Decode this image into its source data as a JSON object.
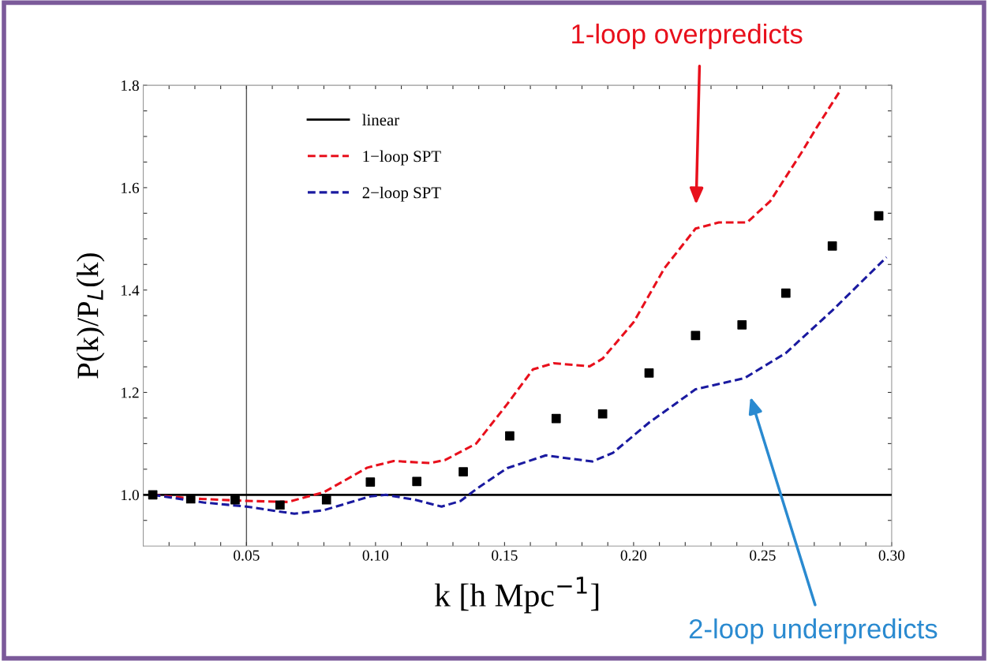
{
  "chart_data": {
    "type": "line",
    "xlabel": "k [h Mpc$^{−1}$]",
    "ylabel": "P(k)/P$_{L}$(k)",
    "xlim": [
      0.01,
      0.3
    ],
    "ylim": [
      0.9,
      1.8
    ],
    "xticks": [
      {
        "value": 0.02,
        "label": null
      },
      {
        "value": 0.03,
        "label": null
      },
      {
        "value": 0.04,
        "label": null
      },
      {
        "value": 0.05,
        "label": "0.05"
      },
      {
        "value": 0.06,
        "label": null
      },
      {
        "value": 0.07,
        "label": null
      },
      {
        "value": 0.08,
        "label": null
      },
      {
        "value": 0.09,
        "label": null
      },
      {
        "value": 0.1,
        "label": "0.10"
      },
      {
        "value": 0.11,
        "label": null
      },
      {
        "value": 0.12,
        "label": null
      },
      {
        "value": 0.13,
        "label": null
      },
      {
        "value": 0.14,
        "label": null
      },
      {
        "value": 0.15,
        "label": "0.15"
      },
      {
        "value": 0.16,
        "label": null
      },
      {
        "value": 0.17,
        "label": null
      },
      {
        "value": 0.18,
        "label": null
      },
      {
        "value": 0.19,
        "label": null
      },
      {
        "value": 0.2,
        "label": "0.20"
      },
      {
        "value": 0.21,
        "label": null
      },
      {
        "value": 0.22,
        "label": null
      },
      {
        "value": 0.23,
        "label": null
      },
      {
        "value": 0.24,
        "label": null
      },
      {
        "value": 0.25,
        "label": "0.25"
      },
      {
        "value": 0.26,
        "label": null
      },
      {
        "value": 0.27,
        "label": null
      },
      {
        "value": 0.28,
        "label": null
      },
      {
        "value": 0.29,
        "label": null
      },
      {
        "value": 0.3,
        "label": "0.30"
      }
    ],
    "yticks": [
      {
        "value": 0.95,
        "label": null
      },
      {
        "value": 1.0,
        "label": "1.0"
      },
      {
        "value": 1.05,
        "label": null
      },
      {
        "value": 1.1,
        "label": null
      },
      {
        "value": 1.15,
        "label": null
      },
      {
        "value": 1.2,
        "label": "1.2"
      },
      {
        "value": 1.25,
        "label": null
      },
      {
        "value": 1.3,
        "label": null
      },
      {
        "value": 1.35,
        "label": null
      },
      {
        "value": 1.4,
        "label": "1.4"
      },
      {
        "value": 1.45,
        "label": null
      },
      {
        "value": 1.5,
        "label": null
      },
      {
        "value": 1.55,
        "label": null
      },
      {
        "value": 1.6,
        "label": "1.6"
      },
      {
        "value": 1.65,
        "label": null
      },
      {
        "value": 1.7,
        "label": null
      },
      {
        "value": 1.75,
        "label": null
      },
      {
        "value": 1.8,
        "label": "1.8"
      }
    ],
    "legend": "top left",
    "grid": false,
    "series": [
      {
        "name": "linear",
        "color": "#000000",
        "line_style": "solid",
        "x": [
          0.01,
          0.3
        ],
        "values": [
          1.0,
          1.0
        ]
      },
      {
        "name": "1−loop SPT",
        "color": "#e8101c",
        "line_style": "dashed",
        "x": [
          0.0137,
          0.028,
          0.05,
          0.066,
          0.08,
          0.0968,
          0.107,
          0.121,
          0.127,
          0.139,
          0.151,
          0.161,
          0.169,
          0.183,
          0.188,
          0.2,
          0.212,
          0.224,
          0.233,
          0.244,
          0.253,
          0.265,
          0.271,
          0.28
        ],
        "values": [
          1.0,
          0.993,
          0.988,
          0.986,
          1.005,
          1.053,
          1.066,
          1.062,
          1.068,
          1.1,
          1.177,
          1.245,
          1.257,
          1.251,
          1.266,
          1.337,
          1.443,
          1.52,
          1.532,
          1.532,
          1.574,
          1.668,
          1.718,
          1.789
        ]
      },
      {
        "name": "2−loop SPT",
        "color": "#1a1aa0",
        "line_style": "dashed",
        "x": [
          0.0137,
          0.0333,
          0.05,
          0.0685,
          0.08,
          0.098,
          0.104,
          0.1155,
          0.1256,
          0.133,
          0.139,
          0.151,
          0.166,
          0.184,
          0.192,
          0.206,
          0.224,
          0.243,
          0.259,
          0.277,
          0.298
        ],
        "values": [
          1.0,
          0.985,
          0.977,
          0.963,
          0.97,
          0.997,
          1.0,
          0.99,
          0.977,
          0.988,
          1.011,
          1.052,
          1.077,
          1.065,
          1.082,
          1.141,
          1.206,
          1.228,
          1.277,
          1.36,
          1.464
        ]
      },
      {
        "type": "scatter",
        "color": "#000000",
        "marker": "square",
        "x": [
          0.0137,
          0.0284,
          0.0456,
          0.063,
          0.081,
          0.098,
          0.116,
          0.134,
          0.152,
          0.17,
          0.188,
          0.206,
          0.224,
          0.242,
          0.259,
          0.277,
          0.295
        ],
        "values": [
          1.0,
          0.992,
          0.99,
          0.98,
          0.99,
          1.025,
          1.026,
          1.045,
          1.115,
          1.149,
          1.158,
          1.238,
          1.311,
          1.332,
          1.394,
          1.486,
          1.545
        ]
      }
    ],
    "ref_lines": [
      {
        "axis": "x",
        "value": 0.05,
        "color": "#555555",
        "line_style": "solid"
      }
    ],
    "annotations": [
      "1-loop overpredicts",
      "2-loop underpredicts"
    ]
  }
}
